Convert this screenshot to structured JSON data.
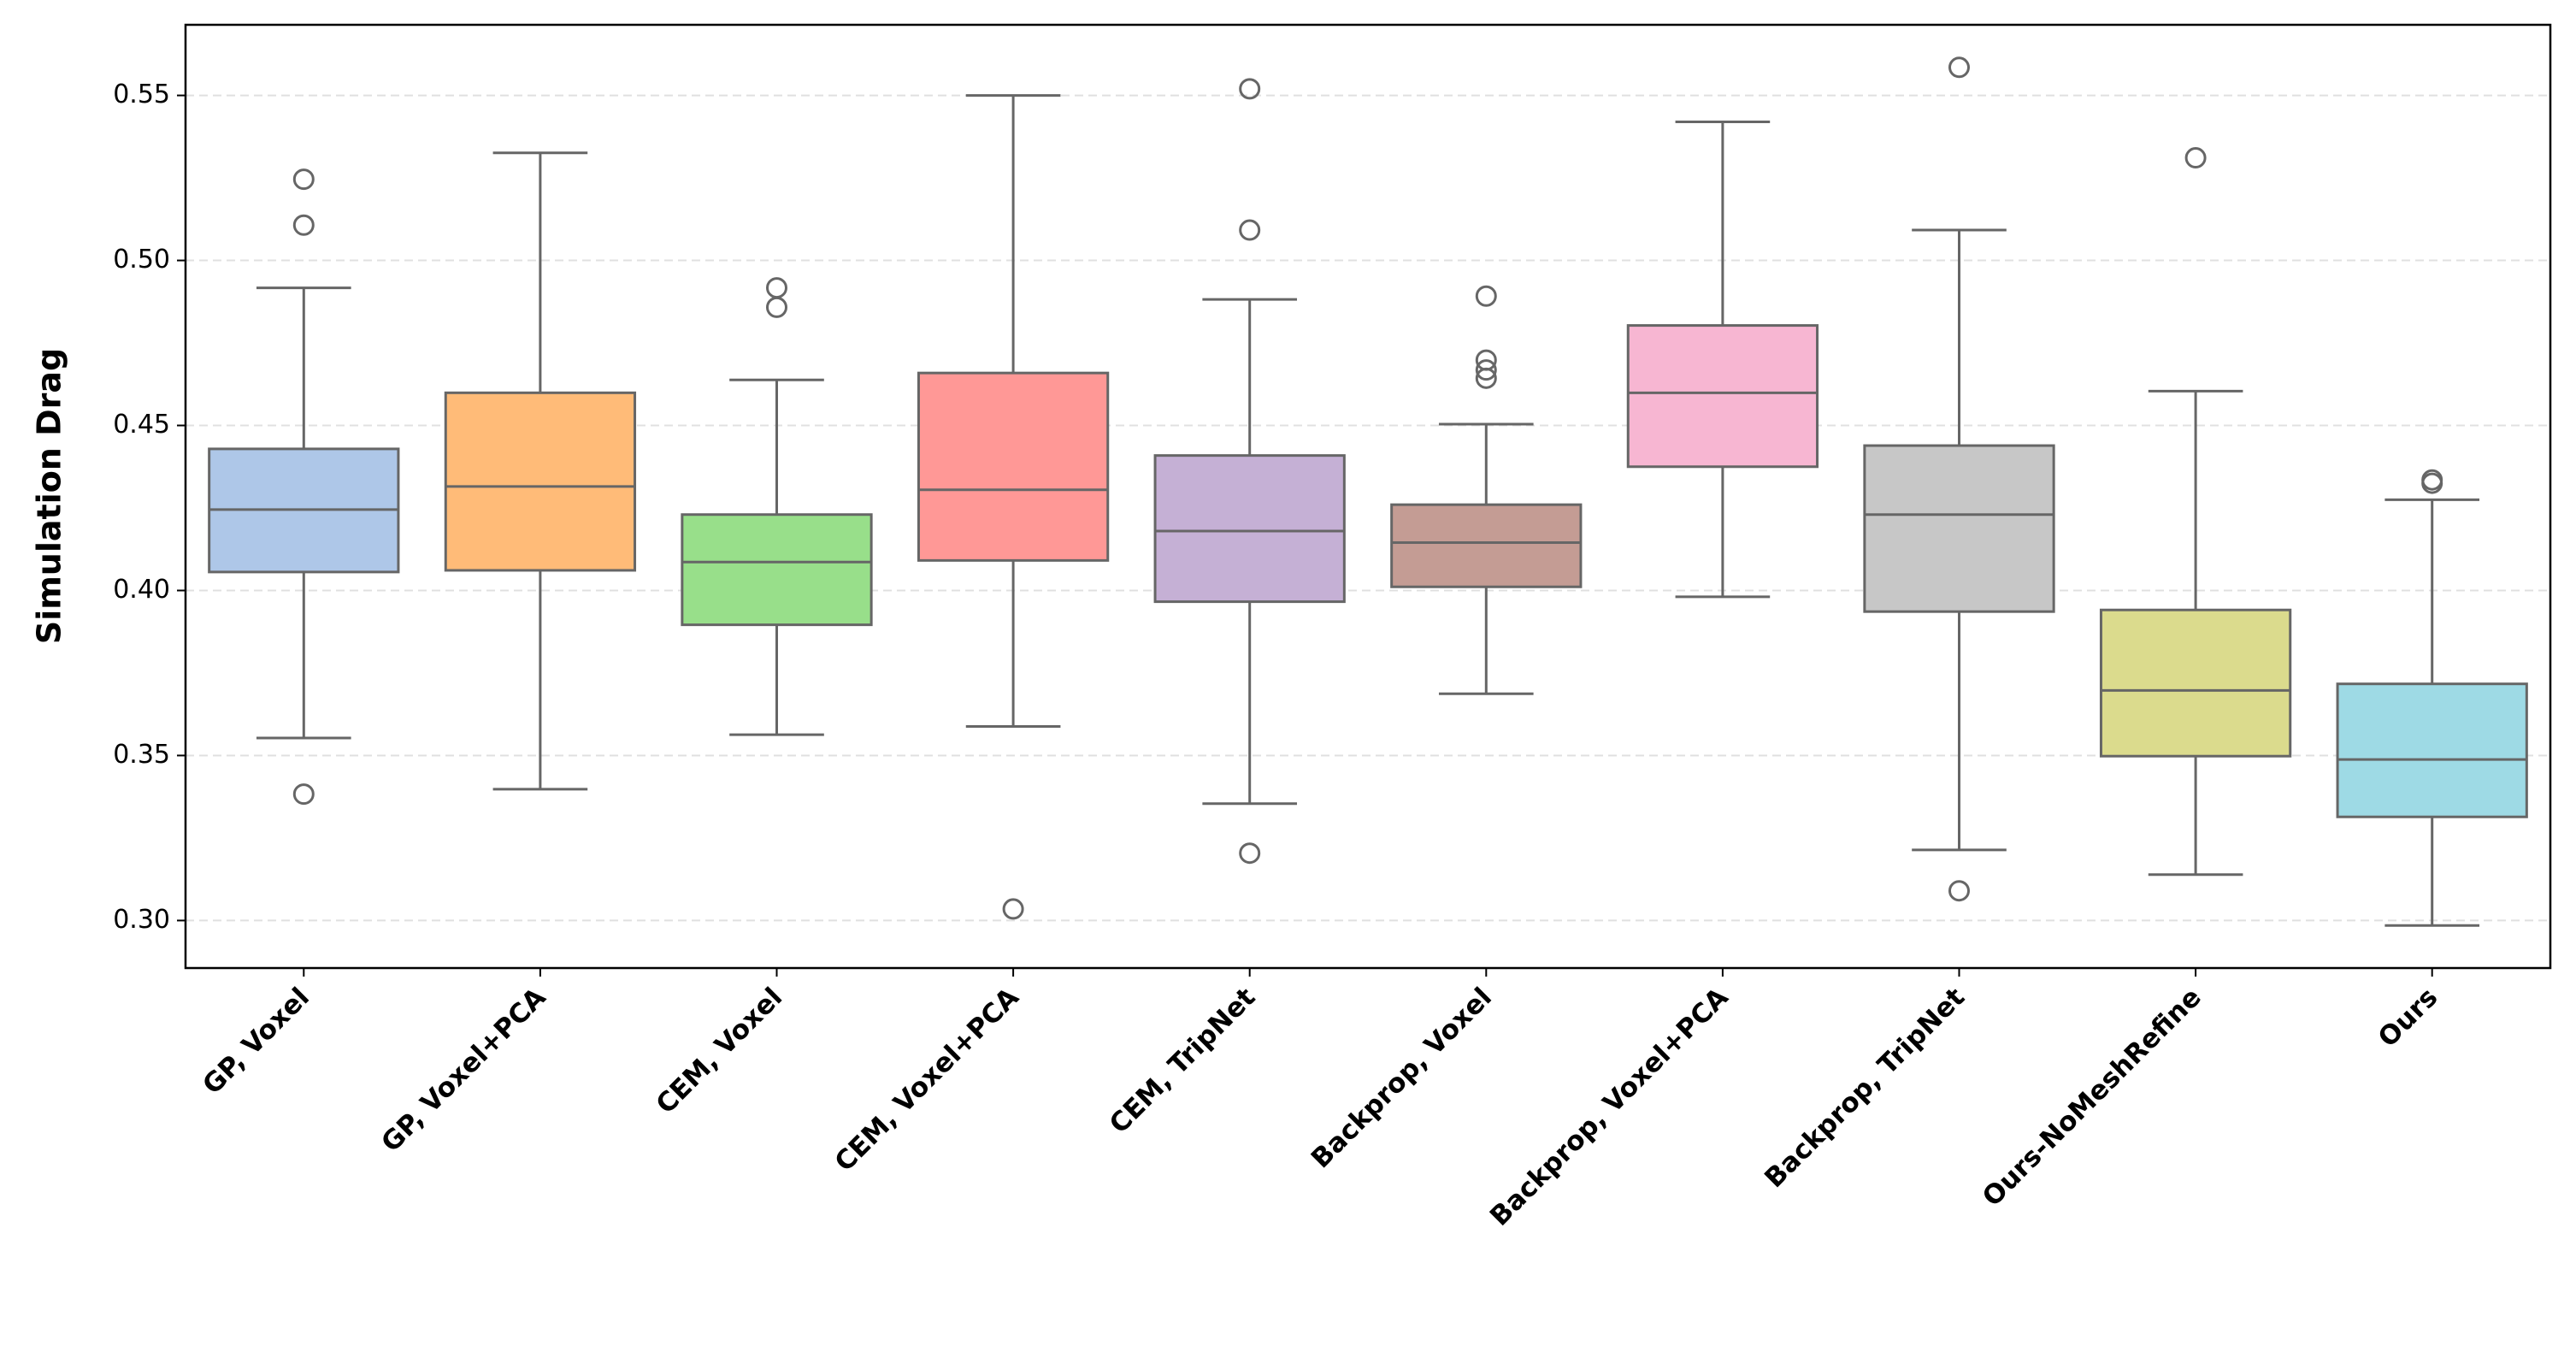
{
  "chart_data": {
    "type": "box",
    "ylabel": "Simulation Drag",
    "categories": [
      "GP, Voxel",
      "GP, Voxel+PCA",
      "CEM, Voxel",
      "CEM, Voxel+PCA",
      "CEM, TripNet",
      "Backprop, Voxel",
      "Backprop, Voxel+PCA",
      "Backprop, TripNet",
      "Ours-NoMeshRefine",
      "Ours"
    ],
    "colors": [
      "#aec7e8",
      "#ffbb78",
      "#98df8a",
      "#ff9896",
      "#c5b0d5",
      "#c49c94",
      "#f7b6d2",
      "#c7c7c7",
      "#dbdb8d",
      "#9edae5"
    ],
    "boxes": [
      {
        "whislo": 0.3553,
        "q1": 0.4056,
        "med": 0.4245,
        "q3": 0.4429,
        "whishi": 0.4917,
        "fliers": [
          0.5246,
          0.5107,
          0.3383
        ]
      },
      {
        "whislo": 0.3398,
        "q1": 0.4061,
        "med": 0.4315,
        "q3": 0.4599,
        "whishi": 0.5326,
        "fliers": []
      },
      {
        "whislo": 0.3563,
        "q1": 0.3896,
        "med": 0.4086,
        "q3": 0.423,
        "whishi": 0.4638,
        "fliers": [
          0.4917,
          0.4858
        ]
      },
      {
        "whislo": 0.3588,
        "q1": 0.4091,
        "med": 0.4305,
        "q3": 0.4659,
        "whishi": 0.55,
        "fliers": [
          0.3035
        ]
      },
      {
        "whislo": 0.3354,
        "q1": 0.3966,
        "med": 0.418,
        "q3": 0.4409,
        "whishi": 0.4882,
        "fliers": [
          0.552,
          0.5092,
          0.3204
        ]
      },
      {
        "whislo": 0.3687,
        "q1": 0.4011,
        "med": 0.4145,
        "q3": 0.426,
        "whishi": 0.4504,
        "fliers": [
          0.4892,
          0.4698,
          0.4668,
          0.4643
        ]
      },
      {
        "whislo": 0.3981,
        "q1": 0.4375,
        "med": 0.4599,
        "q3": 0.4803,
        "whishi": 0.542,
        "fliers": []
      },
      {
        "whislo": 0.3214,
        "q1": 0.3936,
        "med": 0.423,
        "q3": 0.4439,
        "whishi": 0.5092,
        "fliers": [
          0.5585,
          0.309
        ]
      },
      {
        "whislo": 0.3139,
        "q1": 0.3498,
        "med": 0.3697,
        "q3": 0.3941,
        "whishi": 0.4604,
        "fliers": [
          0.5311
        ]
      },
      {
        "whislo": 0.2985,
        "q1": 0.3314,
        "med": 0.3488,
        "q3": 0.3717,
        "whishi": 0.4275,
        "fliers": [
          0.4335,
          0.4325
        ]
      }
    ],
    "ylim": [
      0.2856,
      0.5714
    ],
    "yticks": [
      {
        "value": 0.3,
        "label": "0.30"
      },
      0.35,
      {
        "value": 0.4,
        "label": "0.40"
      },
      0.45,
      {
        "value": 0.5,
        "label": "0.50"
      },
      0.55
    ],
    "grid": true
  }
}
